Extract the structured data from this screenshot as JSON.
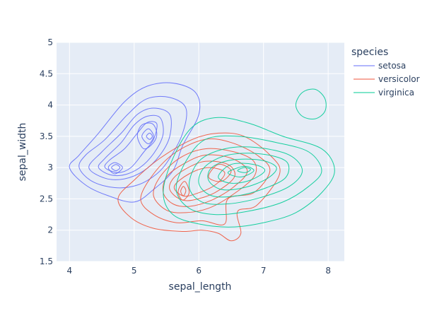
{
  "chart_data": {
    "type": "contour",
    "xlabel": "sepal_length",
    "ylabel": "sepal_width",
    "xlim": [
      3.8,
      8.25
    ],
    "ylim": [
      1.5,
      5
    ],
    "x_ticks": [
      "4",
      "5",
      "6",
      "7",
      "8"
    ],
    "y_ticks": [
      "1.5",
      "2",
      "2.5",
      "3",
      "3.5",
      "4",
      "4.5",
      "5"
    ],
    "grid": true,
    "plot_background": "#e5ecf6",
    "legend": {
      "title": "species",
      "placement": "right"
    },
    "series": [
      {
        "name": "setosa",
        "color": "#636efa",
        "contours": [
          [
            [
              4.0,
              3.0
            ],
            [
              4.25,
              2.72
            ],
            [
              4.6,
              2.55
            ],
            [
              5.0,
              2.45
            ],
            [
              5.3,
              2.65
            ],
            [
              5.6,
              2.95
            ],
            [
              5.75,
              3.35
            ],
            [
              6.0,
              3.85
            ],
            [
              5.95,
              4.2
            ],
            [
              5.6,
              4.35
            ],
            [
              5.2,
              4.3
            ],
            [
              4.85,
              4.05
            ],
            [
              4.45,
              3.55
            ],
            [
              4.15,
              3.2
            ]
          ],
          [
            [
              4.15,
              3.0
            ],
            [
              4.35,
              2.78
            ],
            [
              4.7,
              2.68
            ],
            [
              5.05,
              2.72
            ],
            [
              5.35,
              2.9
            ],
            [
              5.55,
              3.15
            ],
            [
              5.75,
              3.55
            ],
            [
              5.8,
              3.95
            ],
            [
              5.55,
              4.12
            ],
            [
              5.2,
              4.1
            ],
            [
              4.9,
              3.85
            ],
            [
              4.55,
              3.45
            ],
            [
              4.25,
              3.2
            ]
          ],
          [
            [
              4.3,
              3.0
            ],
            [
              4.55,
              2.83
            ],
            [
              4.85,
              2.82
            ],
            [
              5.15,
              2.95
            ],
            [
              5.4,
              3.2
            ],
            [
              5.55,
              3.5
            ],
            [
              5.55,
              3.85
            ],
            [
              5.3,
              3.95
            ],
            [
              5.05,
              3.85
            ],
            [
              4.8,
              3.55
            ],
            [
              4.5,
              3.25
            ]
          ],
          [
            [
              4.45,
              3.0
            ],
            [
              4.65,
              2.88
            ],
            [
              4.9,
              2.9
            ],
            [
              5.15,
              3.05
            ],
            [
              5.35,
              3.3
            ],
            [
              5.45,
              3.55
            ],
            [
              5.4,
              3.8
            ],
            [
              5.2,
              3.82
            ],
            [
              5.0,
              3.68
            ],
            [
              4.8,
              3.4
            ],
            [
              4.55,
              3.15
            ]
          ],
          [
            [
              4.55,
              3.0
            ],
            [
              4.75,
              2.92
            ],
            [
              4.95,
              3.0
            ],
            [
              5.15,
              3.25
            ],
            [
              5.3,
              3.45
            ],
            [
              5.35,
              3.7
            ],
            [
              5.2,
              3.72
            ],
            [
              5.05,
              3.55
            ],
            [
              4.85,
              3.3
            ],
            [
              4.62,
              3.12
            ]
          ],
          [
            [
              5.05,
              3.5
            ],
            [
              5.15,
              3.3
            ],
            [
              5.3,
              3.4
            ],
            [
              5.35,
              3.55
            ],
            [
              5.28,
              3.7
            ],
            [
              5.12,
              3.68
            ]
          ],
          [
            [
              5.12,
              3.5
            ],
            [
              5.22,
              3.38
            ],
            [
              5.3,
              3.5
            ],
            [
              5.22,
              3.62
            ]
          ],
          [
            [
              5.19,
              3.5
            ],
            [
              5.24,
              3.45
            ],
            [
              5.28,
              3.5
            ],
            [
              5.24,
              3.55
            ]
          ],
          [
            [
              4.6,
              3.0
            ],
            [
              4.7,
              2.9
            ],
            [
              4.82,
              3.0
            ],
            [
              4.7,
              3.08
            ]
          ],
          [
            [
              4.65,
              3.0
            ],
            [
              4.72,
              2.95
            ],
            [
              4.78,
              3.0
            ],
            [
              4.72,
              3.05
            ]
          ]
        ]
      },
      {
        "name": "versicolor",
        "color": "#ef553b",
        "contours": [
          [
            [
              4.75,
              2.5
            ],
            [
              4.95,
              2.2
            ],
            [
              5.3,
              2.03
            ],
            [
              5.75,
              1.98
            ],
            [
              6.05,
              2.0
            ],
            [
              6.3,
              1.95
            ],
            [
              6.5,
              1.83
            ],
            [
              6.65,
              1.95
            ],
            [
              6.6,
              2.3
            ],
            [
              6.9,
              2.4
            ],
            [
              7.25,
              2.9
            ],
            [
              7.1,
              3.2
            ],
            [
              6.7,
              3.5
            ],
            [
              6.3,
              3.55
            ],
            [
              5.9,
              3.45
            ],
            [
              5.4,
              3.15
            ],
            [
              5.0,
              2.8
            ]
          ],
          [
            [
              5.1,
              2.5
            ],
            [
              5.3,
              2.25
            ],
            [
              5.65,
              2.12
            ],
            [
              6.05,
              2.15
            ],
            [
              6.4,
              2.1
            ],
            [
              6.45,
              2.5
            ],
            [
              6.85,
              2.6
            ],
            [
              7.1,
              2.95
            ],
            [
              6.9,
              3.2
            ],
            [
              6.5,
              3.4
            ],
            [
              6.1,
              3.45
            ],
            [
              5.65,
              3.25
            ],
            [
              5.3,
              2.9
            ]
          ],
          [
            [
              5.3,
              2.55
            ],
            [
              5.5,
              2.32
            ],
            [
              5.8,
              2.28
            ],
            [
              6.15,
              2.35
            ],
            [
              6.5,
              2.55
            ],
            [
              6.85,
              2.85
            ],
            [
              6.85,
              3.1
            ],
            [
              6.55,
              3.25
            ],
            [
              6.1,
              3.3
            ],
            [
              5.7,
              3.15
            ],
            [
              5.4,
              2.85
            ]
          ],
          [
            [
              5.45,
              2.6
            ],
            [
              5.6,
              2.42
            ],
            [
              5.85,
              2.38
            ],
            [
              6.2,
              2.48
            ],
            [
              6.55,
              2.7
            ],
            [
              6.75,
              2.95
            ],
            [
              6.5,
              3.15
            ],
            [
              6.1,
              3.2
            ],
            [
              5.75,
              3.05
            ],
            [
              5.5,
              2.85
            ]
          ],
          [
            [
              5.55,
              2.65
            ],
            [
              5.7,
              2.5
            ],
            [
              5.9,
              2.48
            ],
            [
              6.25,
              2.6
            ],
            [
              6.55,
              2.85
            ],
            [
              6.45,
              3.05
            ],
            [
              6.1,
              3.1
            ],
            [
              5.8,
              2.98
            ],
            [
              5.6,
              2.82
            ]
          ],
          [
            [
              5.62,
              2.7
            ],
            [
              5.75,
              2.55
            ],
            [
              5.95,
              2.58
            ],
            [
              6.25,
              2.72
            ],
            [
              6.4,
              2.92
            ],
            [
              6.15,
              3.0
            ],
            [
              5.85,
              2.9
            ]
          ],
          [
            [
              5.68,
              2.62
            ],
            [
              5.75,
              2.48
            ],
            [
              5.85,
              2.6
            ],
            [
              5.78,
              2.78
            ]
          ],
          [
            [
              5.72,
              2.62
            ],
            [
              5.76,
              2.55
            ],
            [
              5.8,
              2.63
            ],
            [
              5.76,
              2.7
            ]
          ],
          [
            [
              6.15,
              2.85
            ],
            [
              6.35,
              2.78
            ],
            [
              6.5,
              2.95
            ],
            [
              6.3,
              3.05
            ]
          ]
        ]
      },
      {
        "name": "virginica",
        "color": "#00cc96",
        "contours": [
          [
            [
              5.45,
              2.6
            ],
            [
              5.6,
              2.25
            ],
            [
              6.0,
              2.1
            ],
            [
              6.5,
              2.05
            ],
            [
              7.0,
              2.12
            ],
            [
              7.5,
              2.28
            ],
            [
              7.9,
              2.6
            ],
            [
              8.1,
              2.95
            ],
            [
              7.9,
              3.3
            ],
            [
              7.3,
              3.5
            ],
            [
              6.8,
              3.7
            ],
            [
              6.3,
              3.8
            ],
            [
              5.9,
              3.65
            ],
            [
              5.6,
              3.15
            ]
          ],
          [
            [
              5.65,
              2.65
            ],
            [
              5.85,
              2.35
            ],
            [
              6.25,
              2.25
            ],
            [
              6.75,
              2.3
            ],
            [
              7.3,
              2.45
            ],
            [
              7.7,
              2.7
            ],
            [
              7.9,
              2.95
            ],
            [
              7.7,
              3.25
            ],
            [
              7.2,
              3.4
            ],
            [
              6.6,
              3.5
            ],
            [
              6.1,
              3.45
            ],
            [
              5.8,
              3.1
            ]
          ],
          [
            [
              5.85,
              2.7
            ],
            [
              6.05,
              2.45
            ],
            [
              6.45,
              2.42
            ],
            [
              6.95,
              2.52
            ],
            [
              7.4,
              2.7
            ],
            [
              7.6,
              2.95
            ],
            [
              7.4,
              3.2
            ],
            [
              6.9,
              3.32
            ],
            [
              6.4,
              3.3
            ],
            [
              6.0,
              3.1
            ]
          ],
          [
            [
              6.0,
              2.75
            ],
            [
              6.2,
              2.55
            ],
            [
              6.6,
              2.55
            ],
            [
              7.05,
              2.68
            ],
            [
              7.35,
              2.85
            ],
            [
              7.35,
              3.1
            ],
            [
              6.95,
              3.22
            ],
            [
              6.45,
              3.2
            ],
            [
              6.1,
              3.02
            ]
          ],
          [
            [
              6.15,
              2.8
            ],
            [
              6.35,
              2.65
            ],
            [
              6.7,
              2.68
            ],
            [
              7.05,
              2.82
            ],
            [
              7.2,
              3.0
            ],
            [
              6.95,
              3.12
            ],
            [
              6.5,
              3.12
            ],
            [
              6.2,
              3.0
            ]
          ],
          [
            [
              6.3,
              2.85
            ],
            [
              6.5,
              2.75
            ],
            [
              6.8,
              2.8
            ],
            [
              7.02,
              2.95
            ],
            [
              6.85,
              3.05
            ],
            [
              6.5,
              3.05
            ]
          ],
          [
            [
              6.45,
              2.92
            ],
            [
              6.65,
              2.85
            ],
            [
              6.85,
              2.95
            ],
            [
              6.7,
              3.02
            ]
          ],
          [
            [
              6.6,
              2.95
            ],
            [
              6.72,
              2.92
            ],
            [
              6.8,
              2.97
            ],
            [
              6.7,
              3.0
            ]
          ],
          [
            [
              7.5,
              4.0
            ],
            [
              7.6,
              3.82
            ],
            [
              7.8,
              3.78
            ],
            [
              7.95,
              3.9
            ],
            [
              7.95,
              4.1
            ],
            [
              7.8,
              4.25
            ],
            [
              7.6,
              4.2
            ]
          ]
        ]
      }
    ]
  }
}
